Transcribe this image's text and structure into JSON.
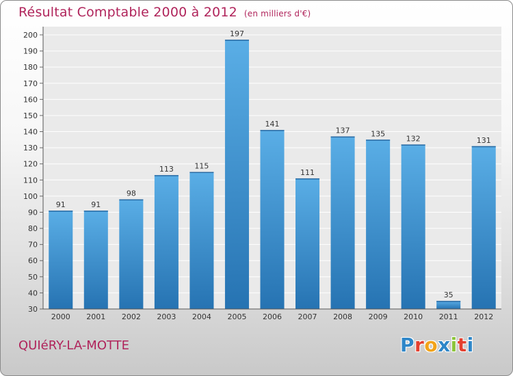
{
  "header": {
    "title": "Résultat Comptable 2000 à 2012",
    "subtitle": "(en milliers d'€)"
  },
  "footer": {
    "commune": "QUIéRY-LA-MOTTE",
    "logo_text": "Proxiti",
    "logo_letters": [
      "P",
      "r",
      "o",
      "x",
      "i",
      "t",
      "i"
    ],
    "logo_colors": [
      "#2e86c8",
      "#e4402f",
      "#f2a31a",
      "#2e86c8",
      "#8cc43a",
      "#e4402f",
      "#2e86c8"
    ]
  },
  "chart_data": {
    "type": "bar",
    "title": "Résultat Comptable 2000 à 2012",
    "subtitle": "(en milliers d'€)",
    "xlabel": "",
    "ylabel": "",
    "categories": [
      "2000",
      "2001",
      "2002",
      "2003",
      "2004",
      "2005",
      "2006",
      "2007",
      "2008",
      "2009",
      "2010",
      "2011",
      "2012"
    ],
    "values": [
      91,
      91,
      98,
      113,
      115,
      197,
      141,
      111,
      137,
      135,
      132,
      35,
      131
    ],
    "labels": [
      "91",
      "91",
      "98",
      "113",
      "115",
      "197",
      "141",
      "111",
      "137",
      "135",
      "132",
      "35",
      "131"
    ],
    "ylim": [
      30,
      200
    ],
    "yticks": [
      30,
      40,
      50,
      60,
      70,
      80,
      90,
      100,
      110,
      120,
      130,
      140,
      150,
      160,
      170,
      180,
      190,
      200
    ],
    "grid": true,
    "legend": "none",
    "colors": {
      "bar_light": "#5aaee6",
      "bar_dark": "#2673b2",
      "grid": "#ffffff",
      "axis_text": "#333333"
    }
  }
}
